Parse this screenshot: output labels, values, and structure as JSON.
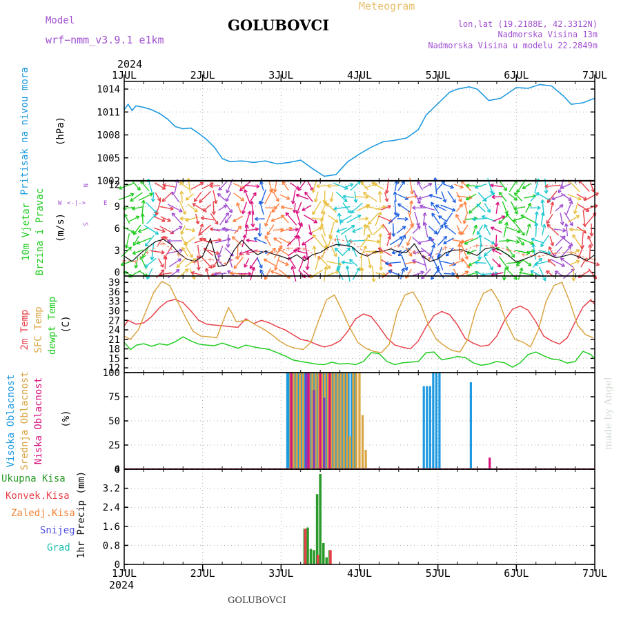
{
  "header": {
    "model_label": "Model",
    "model_name": "wrf−nmm_v3.9.1  e1km",
    "station": "GOLUBOVCI",
    "meteogram": "Meteogram",
    "lonlat": "lon,lat (19.2188E, 42.3312N)",
    "elevation": "Nadmorska Visina 13m",
    "model_elevation": "Nadmorska Visina u modelu 22.2849m",
    "year_top": "2024",
    "year_bottom": "2024",
    "footer_station": "GOLUBOVCI",
    "credit": "made by Angel"
  },
  "colors": {
    "pressure": "#1e9ae0",
    "temp2m": "#e8414a",
    "sfc_temp": "#d9a441",
    "dewpt": "#22cc22",
    "high_cloud": "#1e9ae0",
    "mid_cloud": "#d9a441",
    "low_cloud": "#d8127f",
    "total_precip": "#2a9a2a",
    "conv_precip": "#e8414a",
    "model_label": "#a050d0"
  },
  "chart_data": [
    {
      "type": "line",
      "panel": "pressure",
      "x_ticks": [
        "1JUL",
        "2JUL",
        "3JUL",
        "4JUL",
        "5JUL",
        "6JUL",
        "7JUL"
      ],
      "xlim": [
        0,
        6
      ],
      "ylabel_title": "Pritisak na nivou mora",
      "ylabel_unit": "(hPa)",
      "ylim": [
        1002,
        1015
      ],
      "yticks": [
        1002,
        1005,
        1008,
        1011,
        1014
      ],
      "series": [
        {
          "key": "pressure",
          "x": [
            0,
            0.05,
            0.1,
            0.15,
            0.25,
            0.35,
            0.45,
            0.55,
            0.65,
            0.75,
            0.85,
            0.95,
            1.05,
            1.15,
            1.25,
            1.35,
            1.5,
            1.65,
            1.8,
            1.95,
            2.1,
            2.25,
            2.4,
            2.55,
            2.7,
            2.85,
            3.0,
            3.15,
            3.3,
            3.45,
            3.6,
            3.75,
            3.85,
            4.0,
            4.15,
            4.25,
            4.4,
            4.5,
            4.65,
            4.8,
            5.0,
            5.15,
            5.3,
            5.45,
            5.6,
            5.7,
            5.85,
            6.0
          ],
          "values": [
            1011.3,
            1012.0,
            1011.2,
            1011.8,
            1011.6,
            1011.3,
            1010.8,
            1010.1,
            1009.1,
            1008.8,
            1008.9,
            1008.2,
            1007.4,
            1006.4,
            1004.9,
            1004.5,
            1004.6,
            1004.4,
            1004.6,
            1004.2,
            1004.4,
            1004.7,
            1003.6,
            1002.6,
            1002.8,
            1004.5,
            1005.5,
            1006.4,
            1007.1,
            1007.3,
            1007.6,
            1008.7,
            1010.6,
            1012.1,
            1013.6,
            1014.0,
            1014.3,
            1014.0,
            1012.5,
            1012.8,
            1014.2,
            1014.1,
            1014.6,
            1014.4,
            1013.1,
            1012.0,
            1012.2,
            1012.8
          ]
        }
      ]
    },
    {
      "type": "line",
      "panel": "wind",
      "ylabel_title": "10m Vjetar",
      "ylabel_title2": "Brzina i Pravac",
      "ylabel_unit": "(m/s)",
      "compass": [
        "N",
        "S",
        "W",
        "E"
      ],
      "ylim": [
        -0.5,
        12.5
      ],
      "yticks": [
        0,
        3,
        6,
        9,
        12
      ],
      "series": [
        {
          "key": "speed",
          "x": [
            0,
            0.1,
            0.2,
            0.3,
            0.4,
            0.5,
            0.6,
            0.7,
            0.8,
            0.9,
            1.0,
            1.1,
            1.2,
            1.3,
            1.4,
            1.5,
            1.6,
            1.7,
            1.8,
            1.9,
            2.0,
            2.1,
            2.2,
            2.3,
            2.4,
            2.5,
            2.6,
            2.7,
            2.8,
            2.9,
            3.0,
            3.1,
            3.2,
            3.3,
            3.4,
            3.5,
            3.6,
            3.7,
            3.8,
            3.9,
            4.0,
            4.1,
            4.2,
            4.3,
            4.4,
            4.5,
            4.6,
            4.7,
            4.8,
            4.9,
            5.0,
            5.1,
            5.2,
            5.3,
            5.4,
            5.5,
            5.6,
            5.7,
            5.8,
            5.9,
            6.0
          ],
          "values": [
            2.2,
            1.5,
            2.5,
            3.4,
            4.2,
            4.5,
            3.8,
            2.6,
            1.8,
            1.5,
            2.2,
            4.6,
            0.8,
            1.0,
            3.0,
            4.4,
            3.2,
            2.4,
            2.9,
            2.5,
            2.2,
            1.8,
            2.4,
            1.6,
            2.4,
            2.7,
            3.4,
            3.8,
            3.7,
            3.5,
            2.6,
            2.2,
            2.8,
            2.9,
            3.2,
            2.8,
            2.7,
            3.9,
            2.2,
            1.5,
            1.8,
            2.7,
            3.0,
            3.1,
            2.7,
            2.3,
            3.2,
            3.4,
            3.0,
            2.3,
            1.4,
            1.8,
            2.2,
            2.8,
            2.5,
            2.0,
            2.2,
            2.5,
            2.1,
            1.6,
            2.4
          ]
        },
        {
          "key": "gust",
          "x": [
            0,
            0.15,
            0.3,
            0.5,
            0.7,
            0.9,
            1.1,
            1.3,
            1.5,
            1.7,
            1.9,
            2.1,
            2.3,
            2.5,
            2.7,
            2.9,
            3.1,
            3.3,
            3.5,
            3.7,
            3.9,
            4.1,
            4.3,
            4.5,
            4.7,
            4.9,
            5.1,
            5.3,
            5.5,
            5.7,
            5.9,
            6.0
          ],
          "values": [
            1.6,
            1.5,
            2.8,
            4.0,
            2.4,
            1.4,
            1.8,
            1.2,
            2.4,
            2.9,
            2.7,
            3.3,
            3.2,
            2.0,
            4.5,
            4.2,
            2.4,
            2.9,
            3.7,
            2.8,
            1.9,
            3.4,
            2.9,
            3.7,
            3.6,
            3.1,
            2.4,
            2.2,
            2.6,
            2.8,
            1.9,
            1.8
          ]
        }
      ]
    },
    {
      "type": "line",
      "panel": "temperature",
      "ylabel_title": "2m Temp",
      "ylabel_title2": "SFC Temp",
      "ylabel_title3": "dewpt Temp",
      "ylabel_unit": "(C)",
      "ylim": [
        10.5,
        41
      ],
      "yticks": [
        12,
        15,
        18,
        21,
        24,
        27,
        30,
        33,
        36,
        39
      ],
      "series": [
        {
          "key": "temp2m",
          "x": [
            0,
            0.05,
            0.15,
            0.25,
            0.35,
            0.45,
            0.55,
            0.65,
            0.75,
            0.85,
            0.95,
            1.05,
            1.15,
            1.25,
            1.35,
            1.45,
            1.55,
            1.65,
            1.75,
            1.85,
            1.95,
            2.05,
            2.15,
            2.25,
            2.35,
            2.45,
            2.55,
            2.65,
            2.75,
            2.85,
            2.95,
            3.05,
            3.15,
            3.25,
            3.35,
            3.45,
            3.55,
            3.65,
            3.75,
            3.85,
            3.95,
            4.05,
            4.15,
            4.25,
            4.35,
            4.45,
            4.55,
            4.65,
            4.75,
            4.85,
            4.95,
            5.05,
            5.15,
            5.25,
            5.35,
            5.45,
            5.55,
            5.65,
            5.75,
            5.85,
            5.95,
            6.0
          ],
          "values": [
            25.2,
            27.0,
            25.8,
            26.2,
            28.2,
            31.0,
            33.0,
            33.6,
            32.6,
            30.0,
            27.0,
            25.8,
            25.5,
            25.3,
            25.0,
            24.8,
            27.5,
            26.0,
            27.0,
            26.2,
            25.0,
            24.0,
            22.5,
            21.0,
            20.5,
            19.4,
            18.6,
            19.2,
            20.5,
            23.5,
            27.5,
            29.0,
            28.2,
            25.0,
            21.5,
            19.2,
            18.5,
            18.0,
            20.5,
            25.0,
            28.5,
            29.8,
            28.8,
            25.5,
            21.2,
            19.8,
            18.8,
            19.2,
            22.0,
            27.0,
            30.5,
            31.5,
            30.2,
            26.5,
            22.0,
            20.5,
            19.5,
            21.5,
            26.5,
            31.2,
            33.5,
            32.0
          ]
        },
        {
          "key": "sfc_temp",
          "x": [
            0,
            0.08,
            0.18,
            0.28,
            0.38,
            0.48,
            0.58,
            0.68,
            0.78,
            0.88,
            0.98,
            1.08,
            1.18,
            1.28,
            1.33,
            1.38,
            1.43,
            1.5,
            1.58,
            1.68,
            1.78,
            1.88,
            1.98,
            2.08,
            2.18,
            2.28,
            2.38,
            2.48,
            2.58,
            2.68,
            2.78,
            2.88,
            2.98,
            3.08,
            3.18,
            3.28,
            3.38,
            3.48,
            3.58,
            3.68,
            3.78,
            3.88,
            3.98,
            4.08,
            4.18,
            4.28,
            4.38,
            4.48,
            4.58,
            4.68,
            4.78,
            4.88,
            4.98,
            5.08,
            5.18,
            5.28,
            5.38,
            5.48,
            5.58,
            5.68,
            5.78,
            5.88,
            5.98
          ],
          "values": [
            22.0,
            21.0,
            24.0,
            30.0,
            36.0,
            39.3,
            38.0,
            33.0,
            28.0,
            23.5,
            22.0,
            21.8,
            21.5,
            28.0,
            31.0,
            29.0,
            26.5,
            26.8,
            27.0,
            25.5,
            24.2,
            22.5,
            20.5,
            19.0,
            18.2,
            17.8,
            20.0,
            27.0,
            33.5,
            35.0,
            30.0,
            24.5,
            20.0,
            18.2,
            17.2,
            16.8,
            19.5,
            29.5,
            35.0,
            36.0,
            32.0,
            25.5,
            21.0,
            19.0,
            17.5,
            17.0,
            21.0,
            30.0,
            35.5,
            36.8,
            33.0,
            26.0,
            21.0,
            20.2,
            18.6,
            24.0,
            33.0,
            38.0,
            39.0,
            33.0,
            25.5,
            22.5,
            21.5
          ]
        },
        {
          "key": "dewpt",
          "x": [
            0,
            0.08,
            0.16,
            0.25,
            0.35,
            0.45,
            0.55,
            0.65,
            0.75,
            0.85,
            0.95,
            1.05,
            1.15,
            1.25,
            1.35,
            1.45,
            1.55,
            1.65,
            1.75,
            1.85,
            1.95,
            2.05,
            2.15,
            2.25,
            2.35,
            2.45,
            2.55,
            2.65,
            2.75,
            2.85,
            2.95,
            3.05,
            3.15,
            3.25,
            3.35,
            3.45,
            3.55,
            3.65,
            3.75,
            3.85,
            3.95,
            4.05,
            4.15,
            4.25,
            4.35,
            4.45,
            4.55,
            4.65,
            4.75,
            4.85,
            4.95,
            5.05,
            5.15,
            5.25,
            5.35,
            5.45,
            5.55,
            5.65,
            5.75,
            5.85,
            5.95,
            6.0
          ],
          "values": [
            20.0,
            17.8,
            19.2,
            19.6,
            18.8,
            19.6,
            19.2,
            20.2,
            21.8,
            20.5,
            19.5,
            19.2,
            19.0,
            19.8,
            19.0,
            18.2,
            19.2,
            18.6,
            18.2,
            17.8,
            16.8,
            15.8,
            14.5,
            14.0,
            13.6,
            13.2,
            13.0,
            13.8,
            13.2,
            13.4,
            13.0,
            14.0,
            16.8,
            16.5,
            14.0,
            13.0,
            13.6,
            13.8,
            14.0,
            16.8,
            17.0,
            14.5,
            15.0,
            15.6,
            15.2,
            13.6,
            12.8,
            13.2,
            14.0,
            13.6,
            12.2,
            13.6,
            16.2,
            17.0,
            15.8,
            14.8,
            14.5,
            13.5,
            14.0,
            17.2,
            16.2,
            14.8
          ]
        }
      ]
    },
    {
      "type": "bar",
      "panel": "cloud",
      "ylabel_title": "Visoka Oblacnost",
      "ylabel_title2": "Srednja Oblacnost",
      "ylabel_title3": "Niska Oblacnost",
      "ylabel_unit": "(%)",
      "ylim": [
        0,
        100
      ],
      "yticks": [
        0,
        25,
        50,
        75,
        100
      ],
      "series": [
        {
          "key": "high_cloud",
          "x": [
            2.08,
            2.1,
            2.14,
            2.18,
            2.22,
            2.26,
            2.3,
            2.34,
            2.38,
            2.42,
            2.46,
            2.5,
            2.54,
            2.58,
            2.62,
            2.66,
            2.7,
            2.74,
            2.78,
            2.82,
            2.86,
            2.9,
            2.94,
            3.82,
            3.86,
            3.9,
            3.94,
            3.98,
            4.02,
            4.42
          ],
          "values": [
            100,
            100,
            100,
            100,
            100,
            100,
            100,
            100,
            100,
            100,
            100,
            100,
            100,
            100,
            100,
            100,
            100,
            100,
            100,
            100,
            100,
            100,
            100,
            86,
            86,
            86,
            100,
            100,
            100,
            90
          ]
        },
        {
          "key": "mid_cloud",
          "x": [
            2.12,
            2.16,
            2.2,
            2.24,
            2.28,
            2.32,
            2.36,
            2.4,
            2.44,
            2.48,
            2.52,
            2.56,
            2.6,
            2.64,
            2.68,
            2.72,
            2.76,
            2.8,
            2.84,
            2.88,
            2.92,
            2.96,
            3.0,
            3.04,
            3.08
          ],
          "values": [
            100,
            100,
            100,
            100,
            100,
            8,
            100,
            100,
            100,
            100,
            100,
            100,
            100,
            100,
            100,
            100,
            100,
            100,
            100,
            34,
            100,
            100,
            100,
            56,
            20
          ]
        },
        {
          "key": "low_cloud",
          "x": [
            2.13,
            2.35,
            2.5,
            2.62,
            4.66
          ],
          "values": [
            100,
            100,
            100,
            100,
            12
          ]
        },
        {
          "key": "purple_cloud",
          "x": [
            2.32,
            2.42,
            2.55
          ],
          "values": [
            100,
            82,
            74
          ]
        }
      ]
    },
    {
      "type": "bar",
      "panel": "precip",
      "ylabel_title": "1hr Precip (mm)",
      "ylim": [
        0,
        4
      ],
      "yticks": [
        0,
        0.8,
        1.6,
        2.4,
        3.2,
        4
      ],
      "legend": [
        "Ukupna Kisa",
        "Konvek.Kisa",
        "Zaledj.Kisa",
        "Snijeg",
        "Grad"
      ],
      "x_ticks_bottom": [
        "1JUL",
        "2JUL",
        "3JUL",
        "4JUL",
        "5JUL",
        "6JUL",
        "7JUL"
      ],
      "series": [
        {
          "key": "total_precip",
          "x": [
            2.3,
            2.34,
            2.38,
            2.42,
            2.46,
            2.5,
            2.54,
            2.58,
            2.62
          ],
          "values": [
            1.5,
            1.55,
            0.65,
            0.6,
            2.95,
            3.8,
            0.9,
            0.3,
            0.6
          ]
        },
        {
          "key": "conv_precip",
          "x": [
            2.31,
            2.47,
            2.63
          ],
          "values": [
            1.5,
            0.4,
            0.6
          ]
        }
      ]
    }
  ]
}
